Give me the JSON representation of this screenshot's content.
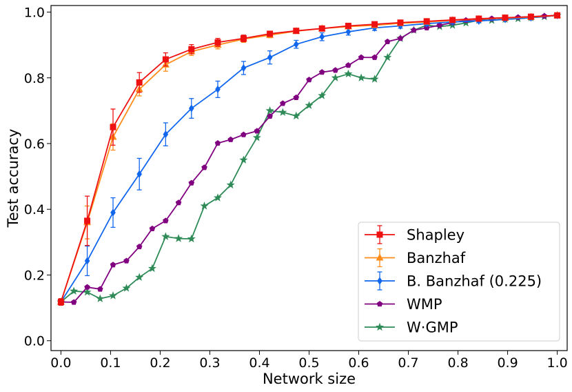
{
  "chart_data": {
    "type": "line",
    "title": "",
    "xlabel": "Network size",
    "ylabel": "Test accuracy",
    "xlim": [
      -0.02,
      1.02
    ],
    "ylim": [
      -0.03,
      1.02
    ],
    "xticks": [
      0.0,
      0.1,
      0.2,
      0.3,
      0.4,
      0.5,
      0.6,
      0.7,
      0.8,
      0.9,
      1.0
    ],
    "xtick_labels": [
      "0.0",
      "0.1",
      "0.2",
      "0.3",
      "0.4",
      "0.5",
      "0.6",
      "0.7",
      "0.8",
      "0.9",
      "1.0"
    ],
    "yticks": [
      0.0,
      0.2,
      0.4,
      0.6,
      0.8,
      1.0
    ],
    "ytick_labels": [
      "0.0",
      "0.2",
      "0.4",
      "0.6",
      "0.8",
      "1.0"
    ],
    "grid": false,
    "legend_position": "bottom-right",
    "series": [
      {
        "name": "Shapley",
        "color": "#ee1111",
        "marker": "square",
        "x": [
          0.0,
          0.053,
          0.105,
          0.158,
          0.211,
          0.263,
          0.316,
          0.368,
          0.421,
          0.474,
          0.526,
          0.579,
          0.632,
          0.684,
          0.737,
          0.789,
          0.842,
          0.895,
          0.947,
          1.0
        ],
        "y": [
          0.118,
          0.365,
          0.65,
          0.786,
          0.856,
          0.887,
          0.908,
          0.92,
          0.934,
          0.943,
          0.95,
          0.958,
          0.963,
          0.968,
          0.972,
          0.976,
          0.98,
          0.983,
          0.986,
          0.99
        ],
        "err": [
          0.01,
          0.075,
          0.055,
          0.03,
          0.02,
          0.014,
          0.012,
          0.01,
          0.008,
          0.007,
          0.006,
          0.006,
          0.005,
          0.005,
          0.004,
          0.004,
          0.004,
          0.003,
          0.003,
          0.003
        ]
      },
      {
        "name": "Banzhaf",
        "color": "#ff8c1a",
        "marker": "triangle",
        "x": [
          0.0,
          0.053,
          0.105,
          0.158,
          0.211,
          0.263,
          0.316,
          0.368,
          0.421,
          0.474,
          0.526,
          0.579,
          0.632,
          0.684,
          0.737,
          0.789,
          0.842,
          0.895,
          0.947,
          1.0
        ],
        "y": [
          0.118,
          0.36,
          0.62,
          0.765,
          0.84,
          0.88,
          0.9,
          0.918,
          0.93,
          0.942,
          0.95,
          0.956,
          0.96,
          0.966,
          0.97,
          0.975,
          0.979,
          0.982,
          0.985,
          0.99
        ],
        "err": [
          0.01,
          0.05,
          0.04,
          0.02,
          0.02,
          0.012,
          0.012,
          0.01,
          0.008,
          0.007,
          0.006,
          0.006,
          0.005,
          0.005,
          0.004,
          0.004,
          0.004,
          0.003,
          0.003,
          0.003
        ]
      },
      {
        "name": "B. Banzhaf (0.225)",
        "color": "#1166ee",
        "marker": "diamond",
        "x": [
          0.0,
          0.053,
          0.105,
          0.158,
          0.211,
          0.263,
          0.316,
          0.368,
          0.421,
          0.474,
          0.526,
          0.579,
          0.632,
          0.684,
          0.737,
          0.789,
          0.842,
          0.895,
          0.947,
          1.0
        ],
        "y": [
          0.118,
          0.243,
          0.39,
          0.507,
          0.628,
          0.707,
          0.765,
          0.83,
          0.862,
          0.902,
          0.925,
          0.94,
          0.952,
          0.958,
          0.965,
          0.97,
          0.973,
          0.978,
          0.983,
          0.99
        ],
        "err": [
          0.01,
          0.045,
          0.045,
          0.048,
          0.035,
          0.03,
          0.025,
          0.02,
          0.02,
          0.012,
          0.012,
          0.01,
          0.008,
          0.007,
          0.006,
          0.005,
          0.005,
          0.004,
          0.004,
          0.003
        ]
      },
      {
        "name": "WMP",
        "color": "#800080",
        "marker": "pentagon",
        "x": [
          0.0,
          0.026,
          0.053,
          0.079,
          0.105,
          0.132,
          0.158,
          0.184,
          0.211,
          0.237,
          0.263,
          0.289,
          0.316,
          0.342,
          0.368,
          0.395,
          0.421,
          0.447,
          0.474,
          0.5,
          0.526,
          0.553,
          0.579,
          0.605,
          0.632,
          0.658,
          0.684,
          0.711,
          0.737,
          0.763,
          0.789,
          0.816,
          0.842,
          0.868,
          0.895,
          0.921,
          0.947,
          0.974,
          1.0
        ],
        "y": [
          0.118,
          0.117,
          0.163,
          0.157,
          0.231,
          0.243,
          0.286,
          0.341,
          0.365,
          0.42,
          0.48,
          0.527,
          0.601,
          0.612,
          0.627,
          0.638,
          0.683,
          0.722,
          0.74,
          0.794,
          0.817,
          0.823,
          0.838,
          0.862,
          0.862,
          0.91,
          0.92,
          0.945,
          0.952,
          0.96,
          0.968,
          0.975,
          0.978,
          0.98,
          0.982,
          0.984,
          0.986,
          0.988,
          0.99
        ],
        "err": []
      },
      {
        "name": "W·GMP",
        "color": "#2e8b57",
        "marker": "star",
        "x": [
          0.0,
          0.026,
          0.053,
          0.079,
          0.105,
          0.132,
          0.158,
          0.184,
          0.211,
          0.237,
          0.263,
          0.289,
          0.316,
          0.342,
          0.368,
          0.395,
          0.421,
          0.447,
          0.474,
          0.5,
          0.526,
          0.553,
          0.579,
          0.605,
          0.632,
          0.658,
          0.684,
          0.711,
          0.737,
          0.763,
          0.789,
          0.816,
          0.842,
          0.868,
          0.895,
          0.921,
          0.947,
          0.974,
          1.0
        ],
        "y": [
          0.118,
          0.151,
          0.148,
          0.128,
          0.137,
          0.16,
          0.193,
          0.22,
          0.317,
          0.311,
          0.31,
          0.41,
          0.435,
          0.474,
          0.55,
          0.618,
          0.7,
          0.695,
          0.684,
          0.716,
          0.746,
          0.8,
          0.812,
          0.8,
          0.796,
          0.862,
          0.92,
          0.945,
          0.96,
          0.956,
          0.96,
          0.967,
          0.975,
          0.975,
          0.978,
          0.98,
          0.983,
          0.986,
          0.99
        ],
        "err": []
      }
    ]
  }
}
